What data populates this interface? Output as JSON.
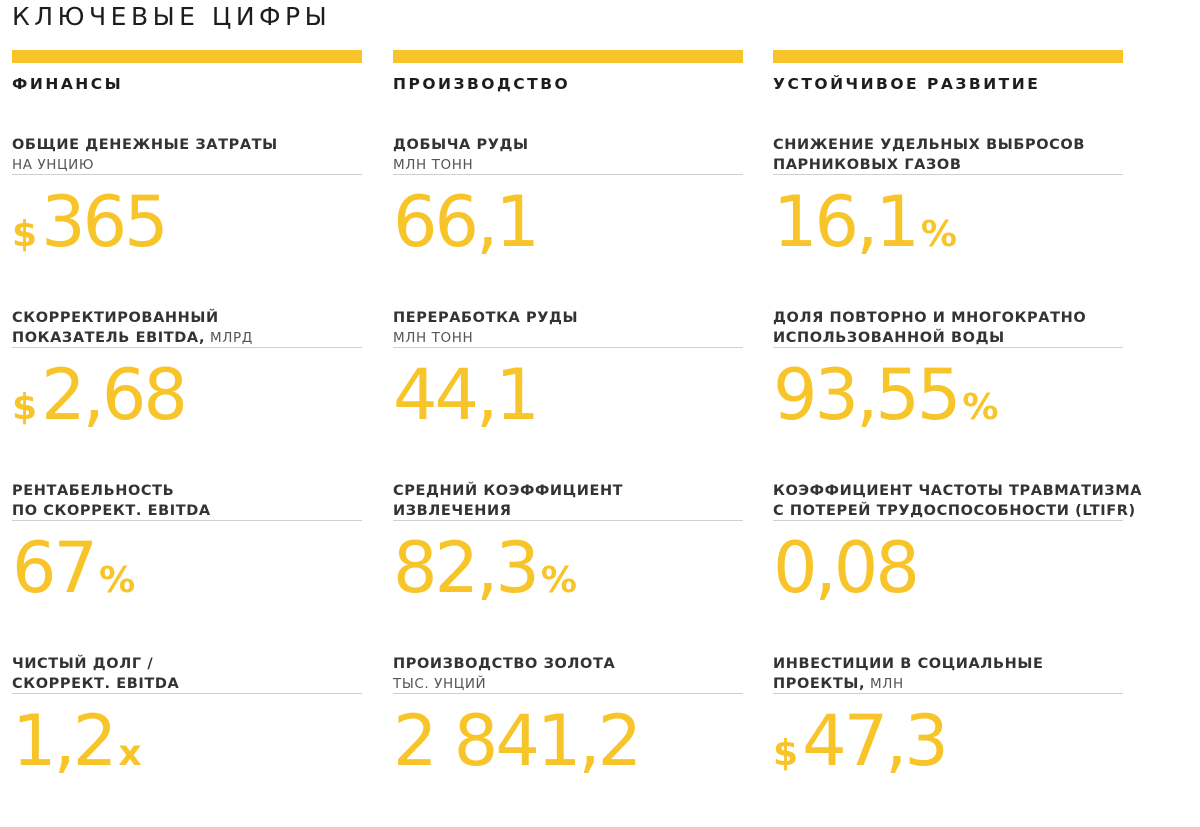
{
  "title": "КЛЮЧЕВЫЕ ЦИФРЫ",
  "colors": {
    "accent": "#f7c42a",
    "text": "#2b2b2b",
    "rule": "#cfcfcf"
  },
  "columns": [
    {
      "heading": "ФИНАНСЫ",
      "metrics": [
        {
          "label1": "ОБЩИЕ ДЕНЕЖНЫЕ ЗАТРАТЫ",
          "label1_sub": "",
          "label2": "НА УНЦИЮ",
          "label2_is_sub": true,
          "prefix": "$",
          "value": "365",
          "suffix": ""
        },
        {
          "label1": "СКОРРЕКТИРОВАННЫЙ",
          "label1_sub": "",
          "label2": "ПОКАЗАТЕЛЬ EBITDA,",
          "label2_sub": " МЛРД",
          "label2_is_sub": false,
          "prefix": "$",
          "value": "2,68",
          "suffix": ""
        },
        {
          "label1": "РЕНТАБЕЛЬНОСТЬ",
          "label1_sub": "",
          "label2": "ПО СКОРРЕКТ. EBITDA",
          "label2_is_sub": false,
          "prefix": "",
          "value": "67",
          "suffix": "%"
        },
        {
          "label1": "ЧИСТЫЙ ДОЛГ /",
          "label1_sub": "",
          "label2": "СКОРРЕКТ. EBITDA",
          "label2_is_sub": false,
          "prefix": "",
          "value": "1,2",
          "suffix": "x"
        }
      ]
    },
    {
      "heading": "ПРОИЗВОДСТВО",
      "metrics": [
        {
          "label1": "ДОБЫЧА РУДЫ",
          "label1_sub": "",
          "label2": "МЛН ТОНН",
          "label2_is_sub": true,
          "prefix": "",
          "value": "66,1",
          "suffix": ""
        },
        {
          "label1": "ПЕРЕРАБОТКА РУДЫ",
          "label1_sub": "",
          "label2": "МЛН ТОНН",
          "label2_is_sub": true,
          "prefix": "",
          "value": "44,1",
          "suffix": ""
        },
        {
          "label1": "СРЕДНИЙ КОЭФФИЦИЕНТ",
          "label1_sub": "",
          "label2": "ИЗВЛЕЧЕНИЯ",
          "label2_is_sub": false,
          "prefix": "",
          "value": "82,3",
          "suffix": "%"
        },
        {
          "label1": "ПРОИЗВОДСТВО ЗОЛОТА",
          "label1_sub": "",
          "label2": "ТЫС. УНЦИЙ",
          "label2_is_sub": true,
          "prefix": "",
          "value": "2 841,2",
          "suffix": ""
        }
      ]
    },
    {
      "heading": "УСТОЙЧИВОЕ РАЗВИТИЕ",
      "metrics": [
        {
          "label1": "СНИЖЕНИЕ УДЕЛЬНЫХ ВЫБРОСОВ",
          "label1_sub": "",
          "label2": "ПАРНИКОВЫХ ГАЗОВ",
          "label2_is_sub": false,
          "prefix": "",
          "value": "16,1",
          "suffix": "%"
        },
        {
          "label1": "ДОЛЯ ПОВТОРНО И МНОГОКРАТНО",
          "label1_sub": "",
          "label2": "ИСПОЛЬЗОВАННОЙ ВОДЫ",
          "label2_is_sub": false,
          "prefix": "",
          "value": "93,55",
          "suffix": "%"
        },
        {
          "label1": "КОЭФФИЦИЕНТ  ЧАСТОТЫ ТРАВМАТИЗМА",
          "label1_sub": "",
          "label2": "С ПОТЕРЕЙ ТРУДОСПОСОБНОСТИ (LTIFR)",
          "label2_is_sub": false,
          "prefix": "",
          "value": "0,08",
          "suffix": ""
        },
        {
          "label1": "ИНВЕСТИЦИИ В СОЦИАЛЬНЫЕ",
          "label1_sub": "",
          "label2": "ПРОЕКТЫ,",
          "label2_sub": " МЛН",
          "label2_is_sub": false,
          "prefix": "$",
          "value": "47,3",
          "suffix": ""
        }
      ]
    }
  ],
  "chart_data": {
    "type": "table",
    "title": "КЛЮЧЕВЫЕ ЦИФРЫ",
    "columns": [
      "ФИНАНСЫ",
      "ПРОИЗВОДСТВО",
      "УСТОЙЧИВОЕ РАЗВИТИЕ"
    ],
    "rows": [
      [
        "$365",
        "66,1",
        "16,1%"
      ],
      [
        "$2,68",
        "44,1",
        "93,55%"
      ],
      [
        "67%",
        "82,3%",
        "0,08"
      ],
      [
        "1,2x",
        "2 841,2",
        "$47,3"
      ]
    ]
  }
}
